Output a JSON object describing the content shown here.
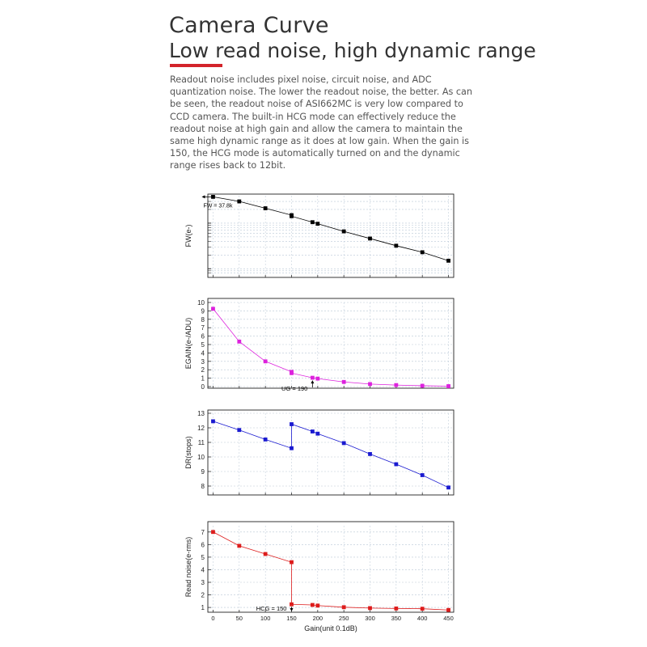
{
  "header": {
    "title": "Camera Curve",
    "subtitle": "Low read noise, high dynamic range",
    "accent_color": "#d3232a",
    "description": "Readout noise includes pixel noise, circuit noise, and ADC quantization noise. The lower the readout noise, the better. As can be seen, the readout noise of ASI662MC is very low compared to CCD camera. The built-in HCG mode can effectively reduce the readout noise at high gain and allow the camera to maintain the same high dynamic range as it does at low gain. When the gain is 150, the HCG mode is automatically turned on and the dynamic range rises back to 12bit."
  },
  "chart_data": [
    {
      "type": "line",
      "ylabel": "FW(e-)",
      "yscale": "log",
      "xlim": [
        -10,
        460
      ],
      "ylim": [
        700,
        40000
      ],
      "yticks": [],
      "x": [
        0,
        50,
        100,
        150,
        150,
        190,
        200,
        250,
        300,
        350,
        400,
        450
      ],
      "series": [
        {
          "color": "#000000",
          "values": [
            37800,
            30000,
            21200,
            15000,
            14200,
            10500,
            9700,
            6600,
            4600,
            3200,
            2300,
            1500
          ]
        }
      ],
      "annotations": [
        {
          "text": "FW = 37.8k",
          "x": 0,
          "y": 37800
        }
      ],
      "grid": true
    },
    {
      "type": "line",
      "ylabel": "EGAIN(e-/ADU)",
      "xlim": [
        -10,
        460
      ],
      "ylim": [
        0,
        10
      ],
      "yticks": [
        0,
        1,
        2,
        3,
        4,
        5,
        6,
        7,
        8,
        9,
        10
      ],
      "x": [
        0,
        50,
        100,
        150,
        150,
        190,
        200,
        250,
        300,
        350,
        400,
        450
      ],
      "series": [
        {
          "color": "#dd22dd",
          "values": [
            9.25,
            5.35,
            3.0,
            1.75,
            1.6,
            1.05,
            0.95,
            0.55,
            0.3,
            0.18,
            0.1,
            0.05
          ]
        }
      ],
      "annotations": [
        {
          "text": "UG = 190",
          "x": 190,
          "y": 1.05
        }
      ],
      "grid": true
    },
    {
      "type": "line",
      "ylabel": "DR(stops)",
      "xlim": [
        -10,
        460
      ],
      "ylim": [
        7.5,
        13
      ],
      "yticks": [
        8,
        9,
        10,
        11,
        12,
        13
      ],
      "x": [
        0,
        50,
        100,
        150,
        150,
        190,
        200,
        250,
        300,
        350,
        400,
        450
      ],
      "series": [
        {
          "color": "#1a1ad0",
          "values": [
            12.45,
            11.85,
            11.2,
            10.6,
            12.25,
            11.75,
            11.6,
            10.95,
            10.2,
            9.5,
            8.75,
            7.9
          ]
        }
      ],
      "grid": true
    },
    {
      "type": "line",
      "ylabel": "Read noise(e-rms)",
      "xlabel": "Gain(unit 0.1dB)",
      "xlim": [
        -10,
        460
      ],
      "ylim": [
        0.75,
        7.5
      ],
      "yticks": [
        1,
        2,
        3,
        4,
        5,
        6,
        7
      ],
      "xticks": [
        0,
        50,
        100,
        150,
        200,
        250,
        300,
        350,
        400,
        450
      ],
      "x": [
        0,
        50,
        100,
        150,
        150,
        190,
        200,
        250,
        300,
        350,
        400,
        450
      ],
      "series": [
        {
          "color": "#dd1c1c",
          "values": [
            7.0,
            5.9,
            5.25,
            4.6,
            1.25,
            1.2,
            1.15,
            1.02,
            0.95,
            0.92,
            0.9,
            0.8
          ]
        }
      ],
      "annotations": [
        {
          "text": "HCG = 150",
          "x": 150,
          "y": 1.25
        }
      ],
      "grid": true
    }
  ]
}
